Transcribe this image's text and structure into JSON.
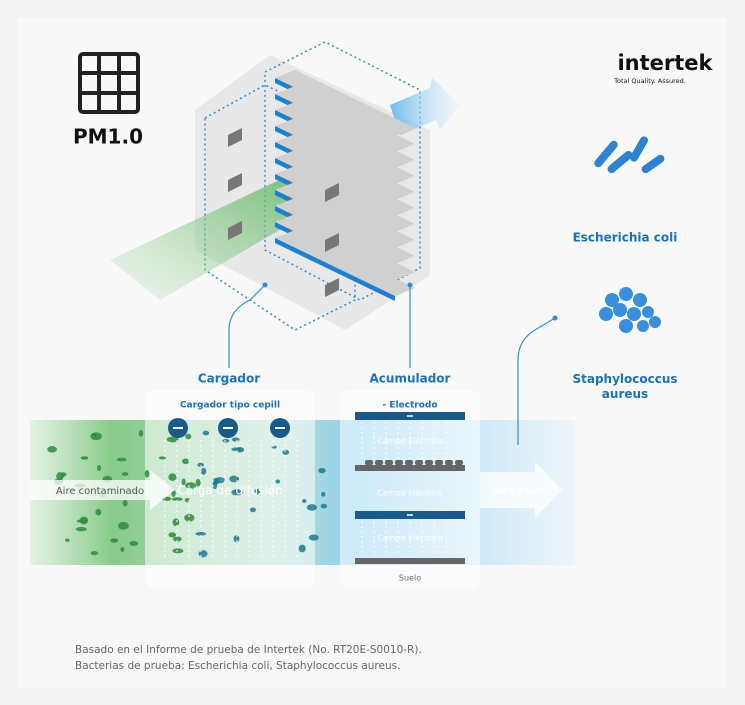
{
  "header": {
    "title": "PM1.0"
  },
  "logo": {
    "name": "intertek",
    "tagline": "Total Quality. Assured."
  },
  "bacteria": [
    {
      "label": "Escherichia coli"
    },
    {
      "label": "Staphylococcus aureus"
    }
  ],
  "diagram": {
    "charger": "Cargador",
    "accumulator": "Acumulador",
    "brush_charger": "Cargador tipo cepill",
    "electrode": "- Electrodo",
    "fields": [
      "Campo Eléctrico",
      "Campo Eléctrico",
      "Campo Eléctrico"
    ],
    "floor": "Suelo",
    "inlet": "Aire contaminado",
    "diffusion": "Carga de difusión",
    "outlet": "Aire Puro"
  },
  "footnote": [
    "Basado en el Informe de prueba de Intertek (No. RT20E-S0010-R).",
    "Bacterias de prueba: Escherichia coli, Staphylococcus aureus."
  ]
}
